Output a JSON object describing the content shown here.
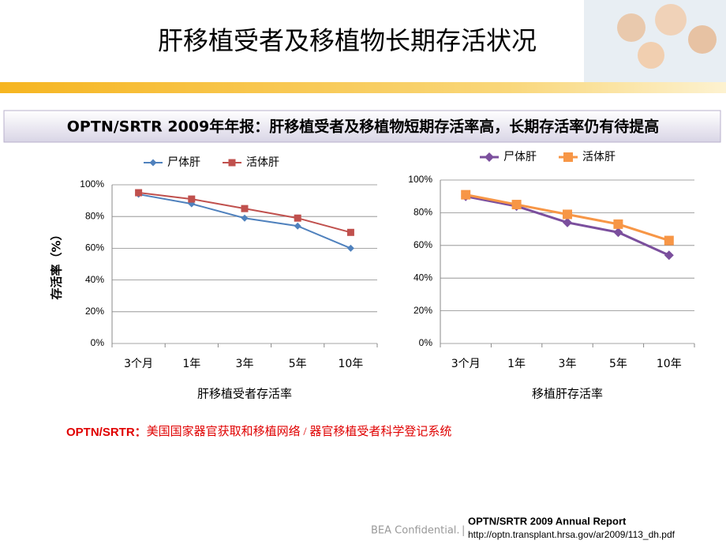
{
  "title": "肝移植受者及移植物长期存活状况",
  "banner": "OPTN/SRTR 2009年年报：肝移植受者及移植物短期存活率高，长期存活率仍有待提高",
  "note": {
    "term": "OPTN/SRTR：",
    "text": "美国国家器官获取和移植网络 / 器官移植受者科学登记系统"
  },
  "footer": {
    "confidential": "BEA Confidential.",
    "separator": "|",
    "source_title": "OPTN/SRTR 2009 Annual Report",
    "source_url": "http://optn.transplant.hrsa.gov/ar2009/113_dh.pdf"
  },
  "chart_data": [
    {
      "type": "line",
      "xlabel": "肝移植受者存活率",
      "ylabel": "存活率（%）",
      "categories": [
        "3个月",
        "1年",
        "3年",
        "5年",
        "10年"
      ],
      "ylim": [
        0,
        100
      ],
      "yticks": [
        {
          "value": 0,
          "label": "0%"
        },
        {
          "value": 20,
          "label": "20%"
        },
        {
          "value": 40,
          "label": "40%"
        },
        {
          "value": 60,
          "label": "60%"
        },
        {
          "value": 80,
          "label": "80%"
        },
        {
          "value": 100,
          "label": "100%"
        }
      ],
      "grid": true,
      "series": [
        {
          "name": "尸体肝",
          "color": "#4f81bd",
          "marker": "diamond",
          "line_width": 2,
          "values": [
            94,
            88,
            79,
            74,
            60
          ]
        },
        {
          "name": "活体肝",
          "color": "#c0504d",
          "marker": "square",
          "line_width": 2,
          "values": [
            95,
            91,
            85,
            79,
            70
          ]
        }
      ]
    },
    {
      "type": "line",
      "xlabel": "移植肝存活率",
      "categories": [
        "3个月",
        "1年",
        "3年",
        "5年",
        "10年"
      ],
      "ylim": [
        0,
        100
      ],
      "yticks": [
        {
          "value": 0,
          "label": "0%"
        },
        {
          "value": 20,
          "label": "20%"
        },
        {
          "value": 40,
          "label": "40%"
        },
        {
          "value": 60,
          "label": "60%"
        },
        {
          "value": 80,
          "label": "80%"
        },
        {
          "value": 100,
          "label": "100%"
        }
      ],
      "grid": true,
      "series": [
        {
          "name": "尸体肝",
          "color": "#7b4f9d",
          "marker": "diamond",
          "line_width": 3,
          "values": [
            90,
            84,
            74,
            68,
            54
          ]
        },
        {
          "name": "活体肝",
          "color": "#f79646",
          "marker": "square",
          "line_width": 3,
          "values": [
            91,
            85,
            79,
            73,
            63
          ]
        }
      ]
    }
  ]
}
